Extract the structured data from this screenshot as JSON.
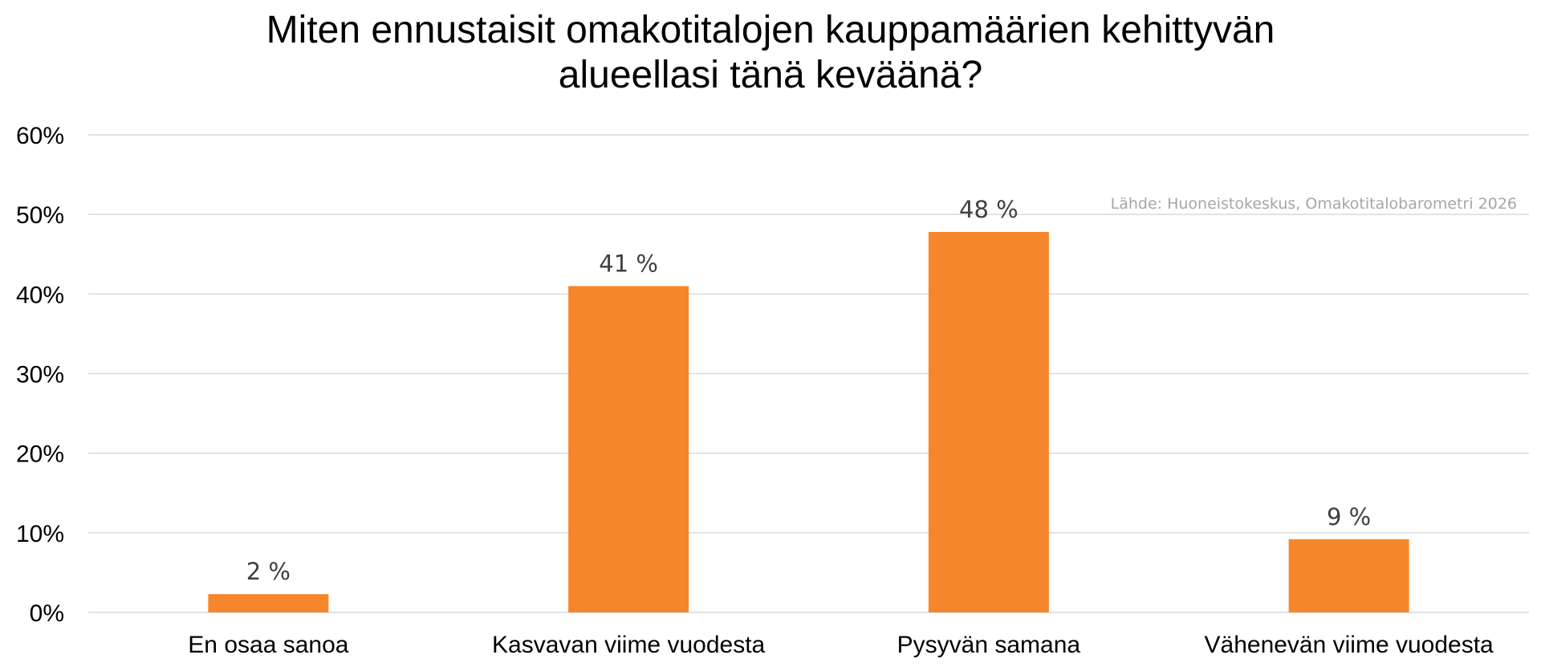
{
  "chart_data": {
    "type": "bar",
    "title_lines": [
      "Miten ennustaisit omakotitalojen kauppamäärien kehittyvän",
      "alueellasi tänä keväänä?"
    ],
    "categories": [
      "En osaa sanoa",
      "Kasvavan viime vuodesta",
      "Pysyvän samana",
      "Vähenevän viime vuodesta"
    ],
    "values": [
      2.3,
      41,
      47.8,
      9.2
    ],
    "data_labels": [
      "2 %",
      "41 %",
      "48 %",
      "9 %"
    ],
    "ylim": [
      0,
      60
    ],
    "yticks": [
      0,
      10,
      20,
      30,
      40,
      50,
      60
    ],
    "ytick_labels": [
      "0%",
      "10%",
      "20%",
      "30%",
      "40%",
      "50%",
      "60%"
    ],
    "grid": true,
    "legend": "none",
    "bar_color": "#F5862C",
    "gridline_color": "#D9D9D9",
    "source_note": "Lähde: Huoneistokeskus, Omakotitalobarometri 2026"
  }
}
